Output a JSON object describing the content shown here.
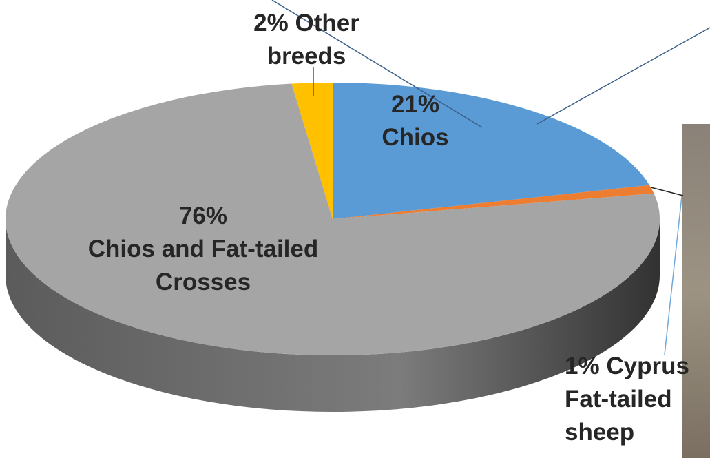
{
  "chart_data": {
    "type": "pie",
    "categories": [
      "Chios",
      "Cyprus Fat-tailed sheep",
      "Chios and Fat-tailed Crosses",
      "Other breeds"
    ],
    "values": [
      21,
      1,
      76,
      2
    ],
    "value_labels": [
      "21%",
      "1%",
      "76%",
      "2%"
    ],
    "colors": [
      "#5b9bd5",
      "#ed7d31",
      "#a5a5a5",
      "#ffc000"
    ]
  }
}
